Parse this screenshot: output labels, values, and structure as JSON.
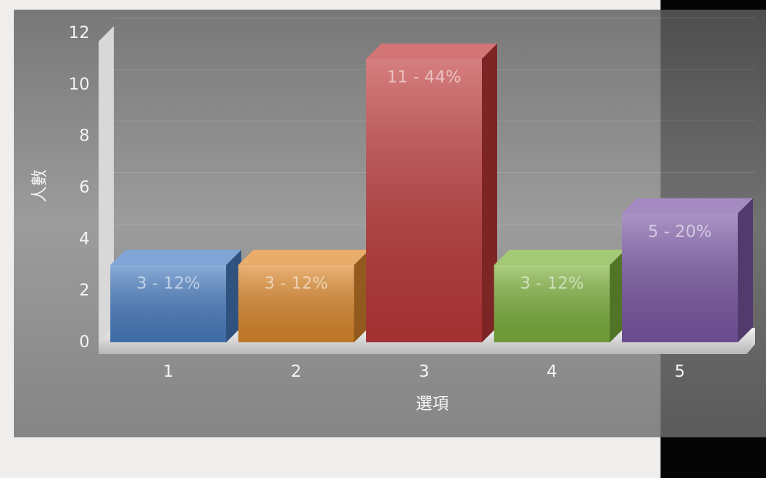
{
  "chart_data": {
    "type": "bar3d",
    "y_label": "人數",
    "x_label": "選項",
    "categories": [
      "1",
      "2",
      "3",
      "4",
      "5"
    ],
    "values": [
      3,
      3,
      11,
      3,
      5
    ],
    "value_labels": [
      "3 - 12%",
      "3 - 12%",
      "11 - 44%",
      "3 - 12%",
      "5 - 20%"
    ],
    "colors": [
      "#4a7fc4",
      "#e08a2c",
      "#c0393a",
      "#7fb33d",
      "#7e5aa8"
    ],
    "ylim": [
      0,
      12
    ],
    "yticks": [
      0,
      2,
      4,
      6,
      8,
      10,
      12
    ],
    "grid": true
  }
}
